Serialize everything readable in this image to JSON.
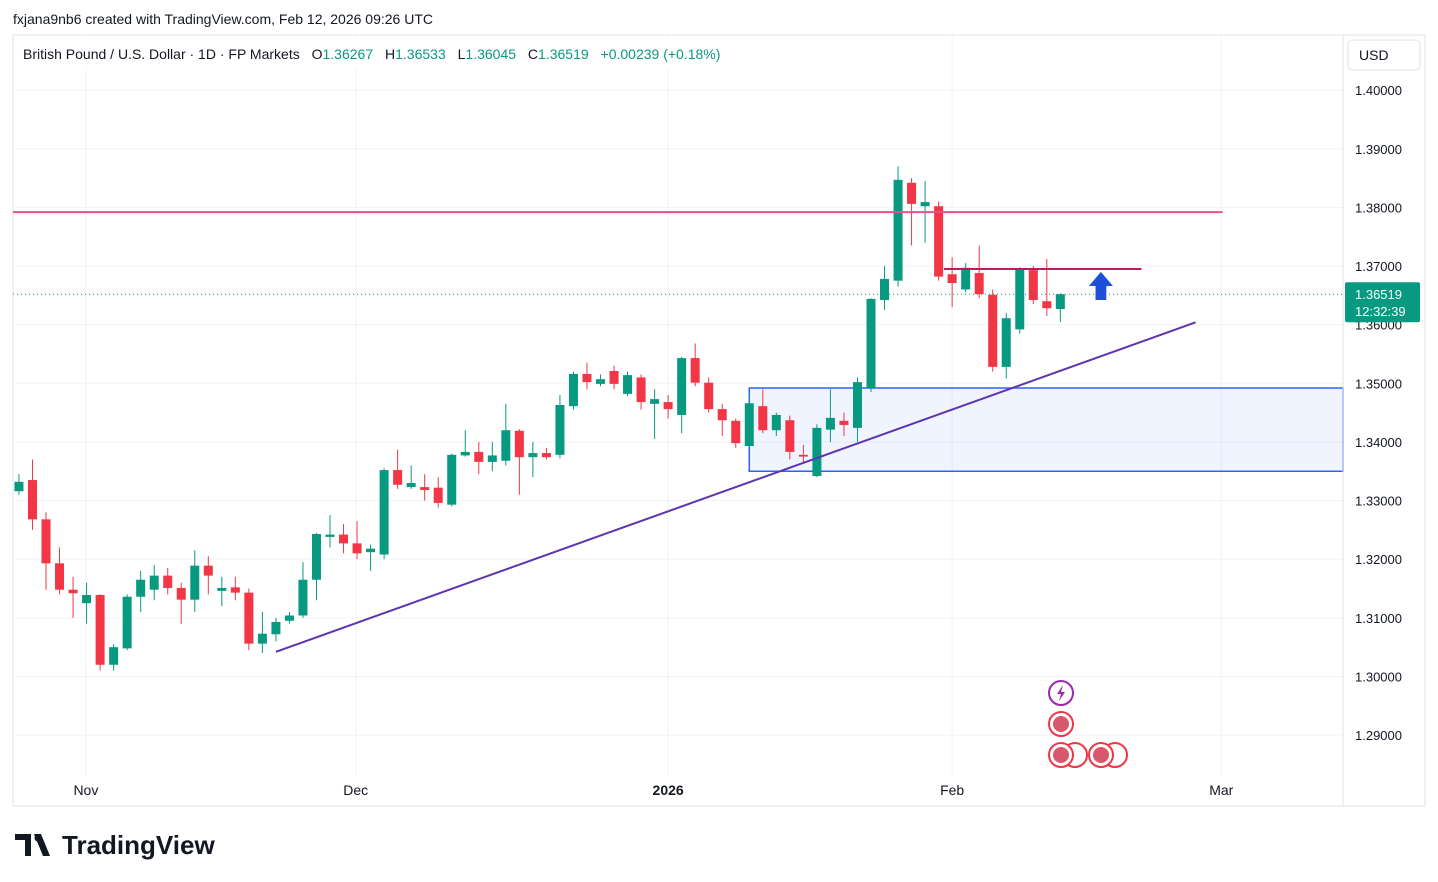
{
  "header": {
    "attribution": "fxjana9nb6 created with TradingView.com, Feb 12, 2026 09:26 UTC",
    "brand": "TradingView"
  },
  "chart_data": {
    "type": "candlestick",
    "title": "British Pound / U.S. Dollar · 1D · FP Markets",
    "ohlc_labels": [
      "O",
      "H",
      "L",
      "C"
    ],
    "change_label": "+0.00239 (+0.18%)",
    "currency": "USD",
    "countdown": "12:32:39",
    "up_color": "#089981",
    "down_color": "#f23645",
    "open": [
      1.3316,
      1.3335,
      1.3268,
      1.3193,
      1.3148,
      1.3125,
      1.3139,
      1.302,
      1.3048,
      1.3136,
      1.3148,
      1.3172,
      1.3151,
      1.3131,
      1.3189,
      1.3146,
      1.3152,
      1.3143,
      1.3056,
      1.3072,
      1.3095,
      1.3104,
      1.3165,
      1.3238,
      1.3242,
      1.3227,
      1.3212,
      1.3208,
      1.3352,
      1.3323,
      1.3323,
      1.3322,
      1.3293,
      1.3377,
      1.3383,
      1.3366,
      1.3368,
      1.3419,
      1.3374,
      1.3381,
      1.3378,
      1.3461,
      1.3516,
      1.3499,
      1.3521,
      1.3482,
      1.351,
      1.3465,
      1.3468,
      1.3446,
      1.3543,
      1.3501,
      1.3456,
      1.3436,
      1.3393,
      1.3461,
      1.342,
      1.3437,
      1.3378,
      1.3342,
      1.3421,
      1.3436,
      1.3424,
      1.3492,
      1.3642,
      1.3675,
      1.3842,
      1.3802,
      1.3802,
      1.3686,
      1.366,
      1.3688,
      1.3651,
      1.3528,
      1.3592,
      1.3693,
      1.364,
      1.36267
    ],
    "high": [
      1.3345,
      1.337,
      1.328,
      1.322,
      1.317,
      1.316,
      1.314,
      1.3055,
      1.314,
      1.318,
      1.319,
      1.3185,
      1.316,
      1.3215,
      1.3205,
      1.317,
      1.317,
      1.315,
      1.311,
      1.31,
      1.311,
      1.3195,
      1.3245,
      1.3275,
      1.326,
      1.3265,
      1.3225,
      1.3355,
      1.3387,
      1.336,
      1.3345,
      1.334,
      1.338,
      1.342,
      1.34,
      1.34,
      1.3465,
      1.3422,
      1.34,
      1.339,
      1.348,
      1.352,
      1.3535,
      1.3515,
      1.353,
      1.352,
      1.3515,
      1.349,
      1.348,
      1.3545,
      1.3568,
      1.351,
      1.3465,
      1.344,
      1.348,
      1.349,
      1.345,
      1.3445,
      1.3395,
      1.343,
      1.349,
      1.345,
      1.351,
      1.3645,
      1.37,
      1.387,
      1.385,
      1.3845,
      1.381,
      1.3715,
      1.3705,
      1.3735,
      1.366,
      1.362,
      1.3698,
      1.37,
      1.3712,
      1.36533
    ],
    "low": [
      1.331,
      1.325,
      1.3148,
      1.314,
      1.31,
      1.309,
      1.301,
      1.301,
      1.3045,
      1.311,
      1.313,
      1.314,
      1.309,
      1.311,
      1.314,
      1.312,
      1.313,
      1.3045,
      1.304,
      1.306,
      1.309,
      1.31,
      1.313,
      1.322,
      1.321,
      1.32,
      1.318,
      1.32,
      1.332,
      1.332,
      1.33,
      1.3288,
      1.329,
      1.3375,
      1.3345,
      1.335,
      1.336,
      1.331,
      1.334,
      1.337,
      1.3372,
      1.3455,
      1.349,
      1.3495,
      1.349,
      1.3478,
      1.3455,
      1.3405,
      1.344,
      1.3415,
      1.3495,
      1.345,
      1.341,
      1.339,
      1.339,
      1.3415,
      1.341,
      1.337,
      1.3365,
      1.334,
      1.34,
      1.341,
      1.34,
      1.3485,
      1.3625,
      1.3665,
      1.3735,
      1.374,
      1.3675,
      1.363,
      1.3655,
      1.3645,
      1.352,
      1.3508,
      1.3585,
      1.3635,
      1.3615,
      1.36045
    ],
    "close": [
      1.3332,
      1.3268,
      1.3193,
      1.3148,
      1.3142,
      1.3139,
      1.302,
      1.305,
      1.3136,
      1.3165,
      1.3172,
      1.3151,
      1.3131,
      1.3189,
      1.3172,
      1.3151,
      1.3143,
      1.3056,
      1.3073,
      1.3093,
      1.3104,
      1.3165,
      1.3243,
      1.3242,
      1.3227,
      1.321,
      1.3218,
      1.3352,
      1.3327,
      1.333,
      1.3318,
      1.3296,
      1.3378,
      1.3383,
      1.3366,
      1.3377,
      1.342,
      1.3374,
      1.3381,
      1.3374,
      1.3463,
      1.3516,
      1.3502,
      1.3507,
      1.3499,
      1.3514,
      1.3468,
      1.3473,
      1.3456,
      1.3543,
      1.3501,
      1.3456,
      1.3437,
      1.3398,
      1.3466,
      1.342,
      1.3446,
      1.3383,
      1.3375,
      1.3424,
      1.3441,
      1.3429,
      1.3502,
      1.3644,
      1.3678,
      1.3847,
      1.3806,
      1.3809,
      1.3682,
      1.3671,
      1.3697,
      1.3652,
      1.3528,
      1.3611,
      1.3695,
      1.3642,
      1.3628,
      1.36519
    ],
    "xlim": [
      -0.44,
      97.9
    ],
    "xticks": [
      {
        "value": 4.95,
        "label": "Nov"
      },
      {
        "value": 24.9,
        "label": "Dec"
      },
      {
        "value": 48.0,
        "label": "2026"
      },
      {
        "value": 69.0,
        "label": "Feb"
      },
      {
        "value": 88.9,
        "label": "Mar"
      }
    ],
    "ylim": [
      1.2832,
      1.4094
    ],
    "yticks": [
      {
        "value": 1.29,
        "label": "1.29000"
      },
      {
        "value": 1.3,
        "label": "1.30000"
      },
      {
        "value": 1.31,
        "label": "1.31000"
      },
      {
        "value": 1.32,
        "label": "1.32000"
      },
      {
        "value": 1.33,
        "label": "1.33000"
      },
      {
        "value": 1.34,
        "label": "1.34000"
      },
      {
        "value": 1.35,
        "label": "1.35000"
      },
      {
        "value": 1.36,
        "label": "1.36000"
      },
      {
        "value": 1.37,
        "label": "1.37000"
      },
      {
        "value": 1.38,
        "label": "1.38000"
      },
      {
        "value": 1.39,
        "label": "1.39000"
      },
      {
        "value": 1.4,
        "label": "1.40000"
      }
    ],
    "grid": true,
    "drawings": [
      {
        "kind": "rect",
        "color": "#2962ff",
        "x": [
          54.0,
          97.9
        ],
        "y": [
          1.3492,
          1.335
        ]
      },
      {
        "kind": "line",
        "color": "#e8508a",
        "x": [
          -0.44,
          89.0
        ],
        "y": [
          1.3792,
          1.3792
        ]
      },
      {
        "kind": "line",
        "color": "#c2185b",
        "x": [
          68.4,
          83.0
        ],
        "y": [
          1.3695,
          1.3695
        ]
      },
      {
        "kind": "line",
        "color": "#5e35b1",
        "x": [
          19.0,
          87.0
        ],
        "y": [
          1.3042,
          1.3604
        ]
      },
      {
        "kind": "arrow",
        "color": "#1e4fd8",
        "x": [
          80.0,
          80.0
        ],
        "y": [
          1.3642,
          1.369
        ]
      }
    ]
  }
}
